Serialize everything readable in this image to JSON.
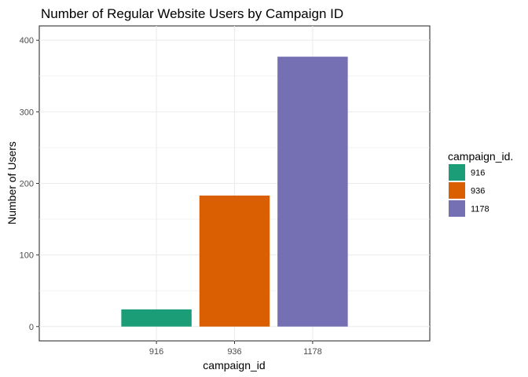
{
  "chart_data": {
    "type": "bar",
    "title": "Number of Regular Website Users by Campaign ID",
    "xlabel": "campaign_id",
    "ylabel": "Number of Users",
    "categories": [
      "916",
      "936",
      "1178"
    ],
    "values": [
      24,
      183,
      377
    ],
    "colors": [
      "#1b9e77",
      "#d95f02",
      "#7570b3"
    ],
    "ylim": [
      -20,
      420
    ],
    "yticks": [
      0,
      100,
      200,
      300,
      400
    ],
    "grid": true,
    "legend": {
      "title": "campaign_id.",
      "placement": "right",
      "entries": [
        "916",
        "936",
        "1178"
      ]
    }
  }
}
